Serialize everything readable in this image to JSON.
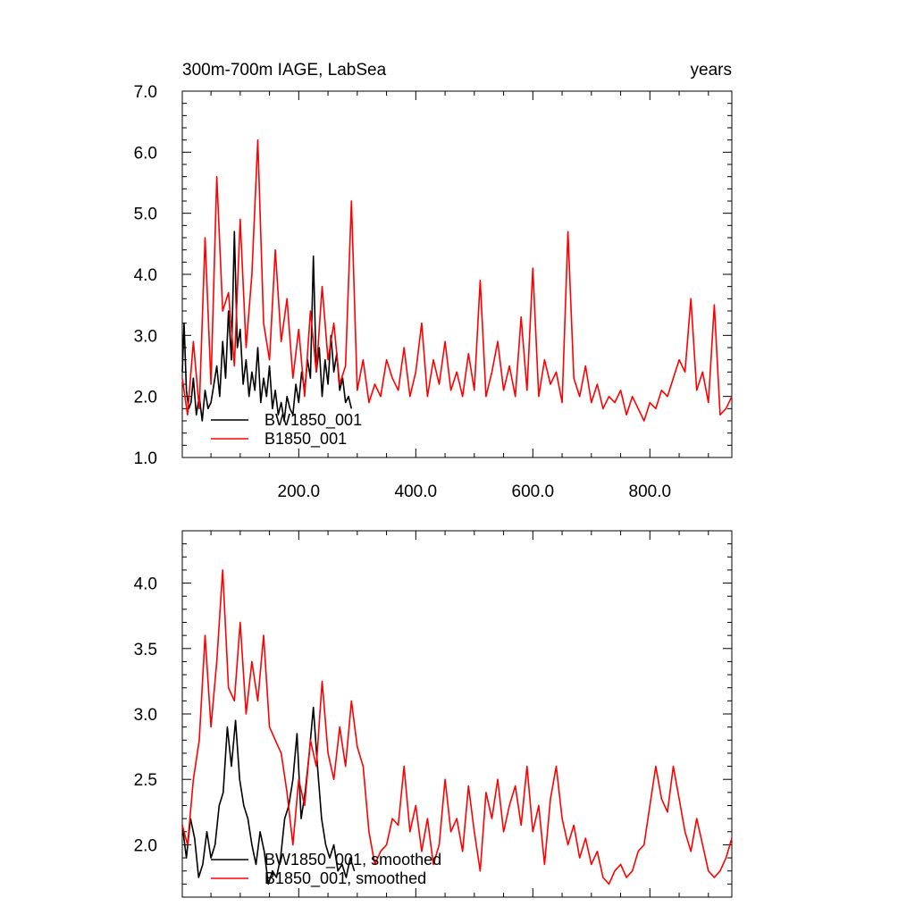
{
  "chart_data": [
    {
      "type": "line",
      "title": "300m-700m IAGE, LabSea",
      "units_label": "years",
      "xlim": [
        1,
        940
      ],
      "ylim": [
        1.0,
        7.0
      ],
      "x_ticks": [
        200,
        400,
        600,
        800
      ],
      "x_tick_labels": [
        "200.0",
        "400.0",
        "600.0",
        "800.0"
      ],
      "y_ticks": [
        1,
        2,
        3,
        4,
        5,
        6,
        7
      ],
      "y_tick_labels": [
        "1.0",
        "2.0",
        "3.0",
        "4.0",
        "5.0",
        "6.0",
        "7.0"
      ],
      "legend_position": "bottom-left",
      "series": [
        {
          "name": "BW1850_001",
          "color": "#000000",
          "x": [
            1,
            4,
            8,
            12,
            16,
            20,
            25,
            30,
            35,
            40,
            45,
            50,
            55,
            60,
            65,
            70,
            75,
            80,
            85,
            90,
            95,
            100,
            105,
            110,
            115,
            120,
            125,
            130,
            135,
            140,
            145,
            150,
            155,
            160,
            165,
            170,
            175,
            180,
            185,
            190,
            195,
            200,
            205,
            210,
            215,
            220,
            225,
            230,
            235,
            240,
            245,
            250,
            255,
            260,
            265,
            270,
            275,
            280,
            285,
            290
          ],
          "values": [
            2.4,
            3.2,
            2.1,
            1.8,
            1.9,
            2.3,
            1.7,
            2.0,
            1.6,
            2.1,
            1.8,
            1.9,
            2.2,
            2.5,
            2.0,
            2.9,
            2.3,
            3.4,
            2.6,
            4.7,
            2.8,
            3.1,
            2.2,
            2.6,
            2.0,
            2.4,
            2.1,
            2.8,
            1.9,
            2.3,
            2.0,
            2.5,
            1.8,
            2.1,
            1.7,
            1.9,
            1.6,
            2.0,
            1.8,
            1.7,
            2.2,
            1.9,
            2.4,
            2.1,
            2.6,
            2.3,
            4.3,
            2.4,
            2.8,
            2.0,
            2.6,
            2.2,
            3.0,
            2.4,
            2.7,
            2.1,
            2.3,
            1.9,
            2.0,
            1.8
          ]
        },
        {
          "name": "B1850_001",
          "color": "#ff0000",
          "x": [
            1,
            10,
            20,
            30,
            40,
            50,
            60,
            70,
            80,
            90,
            100,
            110,
            120,
            130,
            140,
            150,
            160,
            170,
            180,
            190,
            200,
            210,
            220,
            230,
            240,
            250,
            260,
            270,
            280,
            290,
            300,
            310,
            320,
            330,
            340,
            350,
            360,
            370,
            380,
            390,
            400,
            410,
            420,
            430,
            440,
            450,
            460,
            470,
            480,
            490,
            500,
            510,
            520,
            530,
            540,
            550,
            560,
            570,
            580,
            590,
            600,
            610,
            620,
            630,
            640,
            650,
            660,
            670,
            680,
            690,
            700,
            710,
            720,
            730,
            740,
            750,
            760,
            770,
            780,
            790,
            800,
            810,
            820,
            830,
            840,
            850,
            860,
            870,
            880,
            890,
            900,
            910,
            920,
            930,
            940
          ],
          "values": [
            2.3,
            1.7,
            2.9,
            1.8,
            4.6,
            2.2,
            5.6,
            3.4,
            3.7,
            2.5,
            4.9,
            2.8,
            4.0,
            6.2,
            3.2,
            2.6,
            4.4,
            2.9,
            3.6,
            2.3,
            3.1,
            2.0,
            3.4,
            2.4,
            3.8,
            2.6,
            3.2,
            2.2,
            2.5,
            5.2,
            2.1,
            2.6,
            1.9,
            2.2,
            2.0,
            2.6,
            2.3,
            2.1,
            2.8,
            2.0,
            2.4,
            3.2,
            2.0,
            2.6,
            2.2,
            2.9,
            2.1,
            2.4,
            2.0,
            2.7,
            2.1,
            3.9,
            2.0,
            2.4,
            2.9,
            2.1,
            2.5,
            2.0,
            3.3,
            2.1,
            4.1,
            2.0,
            2.6,
            2.2,
            2.4,
            1.9,
            4.7,
            2.3,
            2.0,
            2.5,
            1.9,
            2.2,
            1.8,
            2.0,
            1.9,
            2.1,
            1.7,
            2.0,
            1.8,
            1.6,
            1.9,
            1.8,
            2.1,
            2.0,
            2.3,
            2.6,
            2.4,
            3.6,
            2.1,
            2.4,
            1.9,
            3.5,
            1.7,
            1.8,
            2.0
          ]
        }
      ]
    },
    {
      "type": "line",
      "xlim": [
        1,
        940
      ],
      "ylim": [
        1.6,
        4.4
      ],
      "x_ticks": [
        200,
        400,
        600,
        800
      ],
      "y_ticks": [
        2.0,
        2.5,
        3.0,
        3.5,
        4.0
      ],
      "y_tick_labels": [
        "2.0",
        "2.5",
        "3.0",
        "3.5",
        "4.0"
      ],
      "legend_position": "bottom-left",
      "series": [
        {
          "name": "BW1850_001, smoothed",
          "color": "#000000",
          "x": [
            1,
            8,
            15,
            22,
            29,
            36,
            43,
            50,
            57,
            64,
            71,
            78,
            85,
            92,
            99,
            106,
            113,
            120,
            127,
            134,
            141,
            148,
            155,
            162,
            169,
            176,
            183,
            190,
            197,
            204,
            211,
            218,
            225,
            232,
            239,
            246,
            253,
            260,
            267,
            274,
            281,
            288,
            295
          ],
          "values": [
            2.15,
            1.9,
            2.2,
            2.05,
            1.75,
            1.85,
            2.1,
            1.9,
            2.0,
            2.3,
            2.4,
            2.9,
            2.6,
            2.95,
            2.5,
            2.3,
            2.2,
            2.0,
            1.85,
            2.1,
            1.95,
            1.7,
            1.8,
            1.75,
            1.9,
            2.2,
            2.3,
            2.5,
            2.85,
            2.2,
            2.4,
            2.7,
            3.05,
            2.6,
            2.2,
            2.0,
            1.9,
            2.0,
            1.8,
            1.85,
            1.75,
            1.9,
            1.8
          ]
        },
        {
          "name": "B1850_001, smoothed",
          "color": "#ff0000",
          "x": [
            1,
            10,
            20,
            30,
            40,
            50,
            60,
            70,
            80,
            90,
            100,
            110,
            120,
            130,
            140,
            150,
            160,
            170,
            180,
            190,
            200,
            210,
            220,
            230,
            240,
            250,
            260,
            270,
            280,
            290,
            300,
            310,
            320,
            330,
            340,
            350,
            360,
            370,
            380,
            390,
            400,
            410,
            420,
            430,
            440,
            450,
            460,
            470,
            480,
            490,
            500,
            510,
            520,
            530,
            540,
            550,
            560,
            570,
            580,
            590,
            600,
            610,
            620,
            630,
            640,
            650,
            660,
            670,
            680,
            690,
            700,
            710,
            720,
            730,
            740,
            750,
            760,
            770,
            780,
            790,
            800,
            810,
            820,
            830,
            840,
            850,
            860,
            870,
            880,
            890,
            900,
            910,
            920,
            930,
            940
          ],
          "values": [
            2.15,
            2.0,
            2.5,
            2.8,
            3.6,
            2.9,
            3.4,
            4.1,
            3.2,
            3.1,
            3.7,
            3.0,
            3.4,
            3.1,
            3.6,
            2.9,
            2.8,
            2.7,
            2.4,
            2.0,
            2.5,
            2.3,
            2.8,
            2.6,
            3.25,
            2.7,
            2.5,
            2.9,
            2.6,
            3.1,
            2.75,
            2.6,
            2.1,
            1.85,
            1.95,
            2.0,
            2.2,
            2.15,
            2.6,
            2.1,
            2.3,
            1.95,
            2.2,
            1.85,
            2.0,
            2.5,
            2.1,
            2.2,
            1.95,
            2.45,
            2.1,
            1.8,
            2.4,
            2.2,
            2.5,
            2.1,
            2.3,
            2.45,
            2.15,
            2.6,
            2.1,
            2.3,
            1.85,
            2.35,
            2.6,
            2.2,
            2.0,
            2.15,
            1.9,
            2.05,
            1.85,
            1.95,
            1.75,
            1.7,
            1.8,
            1.85,
            1.75,
            1.8,
            1.95,
            2.0,
            2.3,
            2.6,
            2.35,
            2.25,
            2.6,
            2.35,
            2.1,
            1.95,
            2.2,
            2.0,
            1.8,
            1.75,
            1.8,
            1.9,
            2.05
          ]
        }
      ]
    }
  ]
}
